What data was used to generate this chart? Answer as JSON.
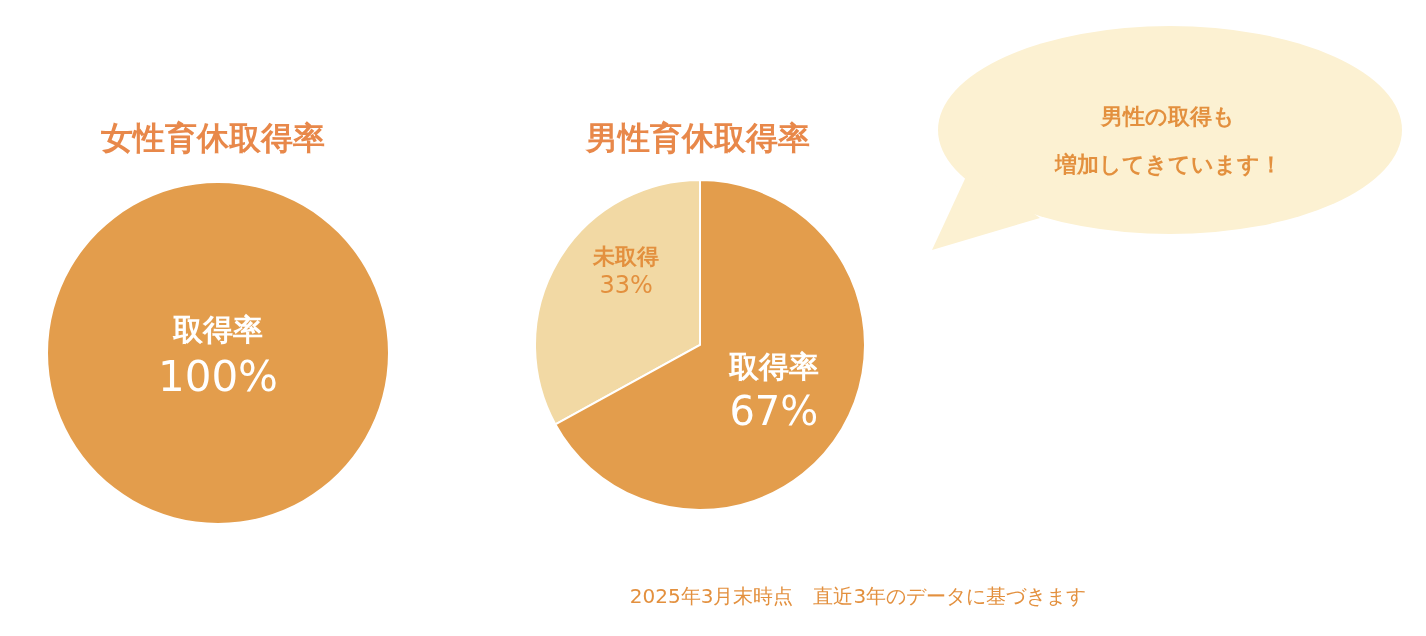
{
  "chart_data": [
    {
      "type": "pie",
      "title": "女性育休取得率",
      "categories": [
        "取得率"
      ],
      "values": [
        100
      ],
      "colors": [
        "#e39d4c"
      ],
      "value_labels": [
        "100%"
      ],
      "legend": false
    },
    {
      "type": "pie",
      "title": "男性育休取得率",
      "categories": [
        "未取得",
        "取得率"
      ],
      "values": [
        33,
        67
      ],
      "colors": [
        "#f2d9a4",
        "#e39d4c"
      ],
      "value_labels": [
        "33%",
        "67%"
      ],
      "legend": false,
      "annotations": [
        "男性の取得も",
        "増加してきています！",
        "2025年3月末時点　直近3年のデータに基づきます"
      ]
    }
  ]
}
